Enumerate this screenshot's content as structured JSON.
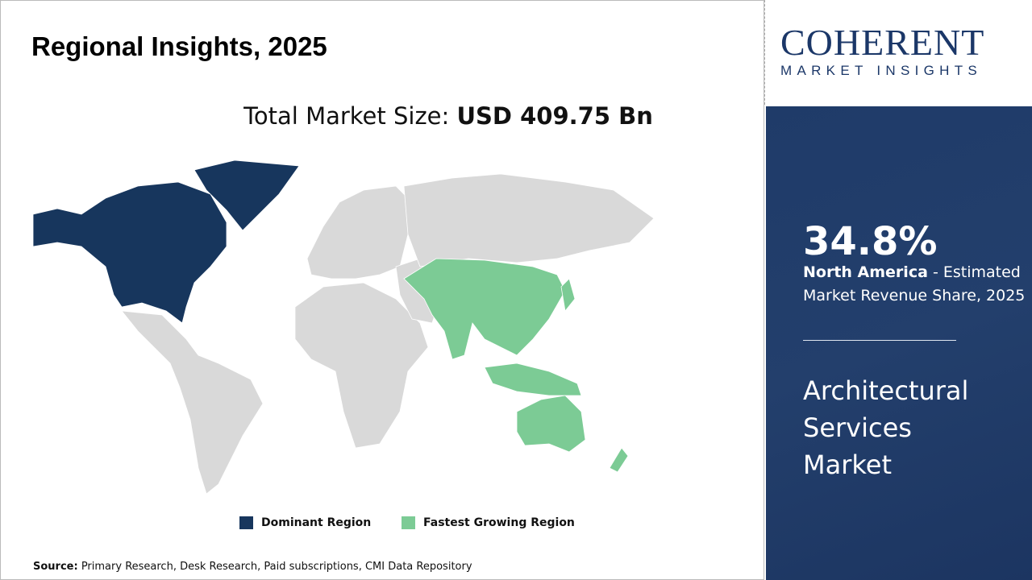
{
  "header": {
    "title": "Regional Insights, 2025"
  },
  "total": {
    "label": "Total Market Size: ",
    "value": "USD 409.75 Bn"
  },
  "legend": [
    {
      "label": "Dominant Region",
      "color": "#17365d"
    },
    {
      "label": "Fastest Growing Region",
      "color": "#7ccb95"
    }
  ],
  "map": {
    "dominant_region": "North America",
    "fastest_growing_region": "Asia Pacific",
    "other_color": "#d9d9d9"
  },
  "source": {
    "label": "Source:",
    "text": " Primary Research, Desk Research, Paid subscriptions, CMI Data Repository"
  },
  "logo": {
    "name": "COHERENT",
    "tagline": "MARKET INSIGHTS"
  },
  "panel": {
    "percent": "34.8%",
    "region": "North America",
    "description": " - Estimated Market Revenue Share, 2025",
    "market_name": "Architectural Services Market"
  }
}
